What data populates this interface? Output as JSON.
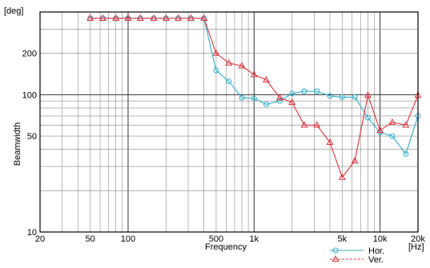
{
  "chart_data": {
    "type": "line",
    "xlabel": "Frequency",
    "ylabel": "Beamwidth",
    "x_unit": "[Hz]",
    "y_unit": "[deg]",
    "x_scale": "log",
    "y_scale": "log",
    "xlim": [
      20,
      20000
    ],
    "ylim": [
      10,
      400
    ],
    "grid": true,
    "legend_position": "bottom-right",
    "x_ticks": [
      {
        "value": 20,
        "label": "20"
      },
      {
        "value": 50,
        "label": "50"
      },
      {
        "value": 100,
        "label": "100"
      },
      {
        "value": 500,
        "label": "500"
      },
      {
        "value": 1000,
        "label": "1k"
      },
      {
        "value": 5000,
        "label": "5k"
      },
      {
        "value": 10000,
        "label": "10k"
      },
      {
        "value": 20000,
        "label": "20k"
      }
    ],
    "y_ticks": [
      {
        "value": 10,
        "label": "10"
      },
      {
        "value": 50,
        "label": "50"
      },
      {
        "value": 100,
        "label": "100"
      },
      {
        "value": 200,
        "label": "200"
      }
    ],
    "series": [
      {
        "name": "Hor.",
        "color": "#2eaecb",
        "marker": "circle",
        "line_style": "solid",
        "x": [
          50,
          63,
          80,
          100,
          125,
          160,
          200,
          250,
          315,
          400,
          500,
          630,
          800,
          1000,
          1250,
          1600,
          2000,
          2500,
          3150,
          4000,
          5000,
          6300,
          8000,
          10000,
          12500,
          16000,
          20000
        ],
        "y": [
          360,
          360,
          360,
          360,
          360,
          360,
          360,
          360,
          360,
          360,
          150,
          125,
          95,
          94,
          85,
          90,
          102,
          106,
          106,
          98,
          96,
          96,
          68,
          53,
          50,
          37,
          70
        ]
      },
      {
        "name": "Ver.",
        "color": "#e0303a",
        "marker": "triangle",
        "line_style": "dashed",
        "x": [
          50,
          63,
          80,
          100,
          125,
          160,
          200,
          250,
          315,
          400,
          500,
          630,
          800,
          1000,
          1250,
          1600,
          2000,
          2500,
          3150,
          4000,
          5000,
          6300,
          8000,
          10000,
          12500,
          16000,
          20000
        ],
        "y": [
          360,
          360,
          360,
          360,
          360,
          360,
          360,
          360,
          360,
          360,
          200,
          170,
          162,
          140,
          128,
          95,
          88,
          60,
          60,
          45,
          25,
          33,
          99,
          55,
          63,
          60,
          99
        ]
      }
    ]
  }
}
